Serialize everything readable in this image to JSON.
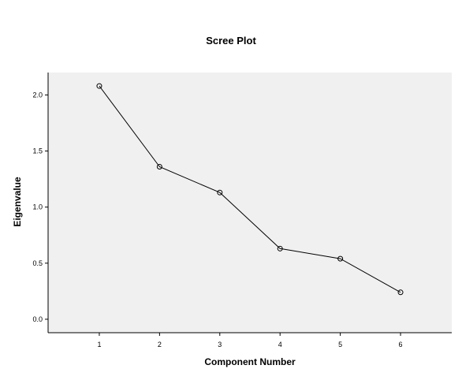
{
  "chart_data": {
    "type": "line",
    "title": "Scree Plot",
    "xlabel": "Component Number",
    "ylabel": "Eigenvalue",
    "x": [
      1,
      2,
      3,
      4,
      5,
      6
    ],
    "y": [
      2.08,
      1.36,
      1.13,
      0.63,
      0.54,
      0.24
    ],
    "xlim": [
      0.15,
      6.85
    ],
    "ylim": [
      -0.12,
      2.2
    ],
    "x_ticks": [
      1,
      2,
      3,
      4,
      5,
      6
    ],
    "y_ticks": [
      0.0,
      0.5,
      1.0,
      1.5,
      2.0
    ],
    "y_tick_labels": [
      "0.0",
      "0.5",
      "1.0",
      "1.5",
      "2.0"
    ],
    "grid": false,
    "legend": "none",
    "marker": "open-circle",
    "colors": {
      "plot_background": "#f0f0f0",
      "line": "#000000",
      "axes": "#000000"
    }
  }
}
